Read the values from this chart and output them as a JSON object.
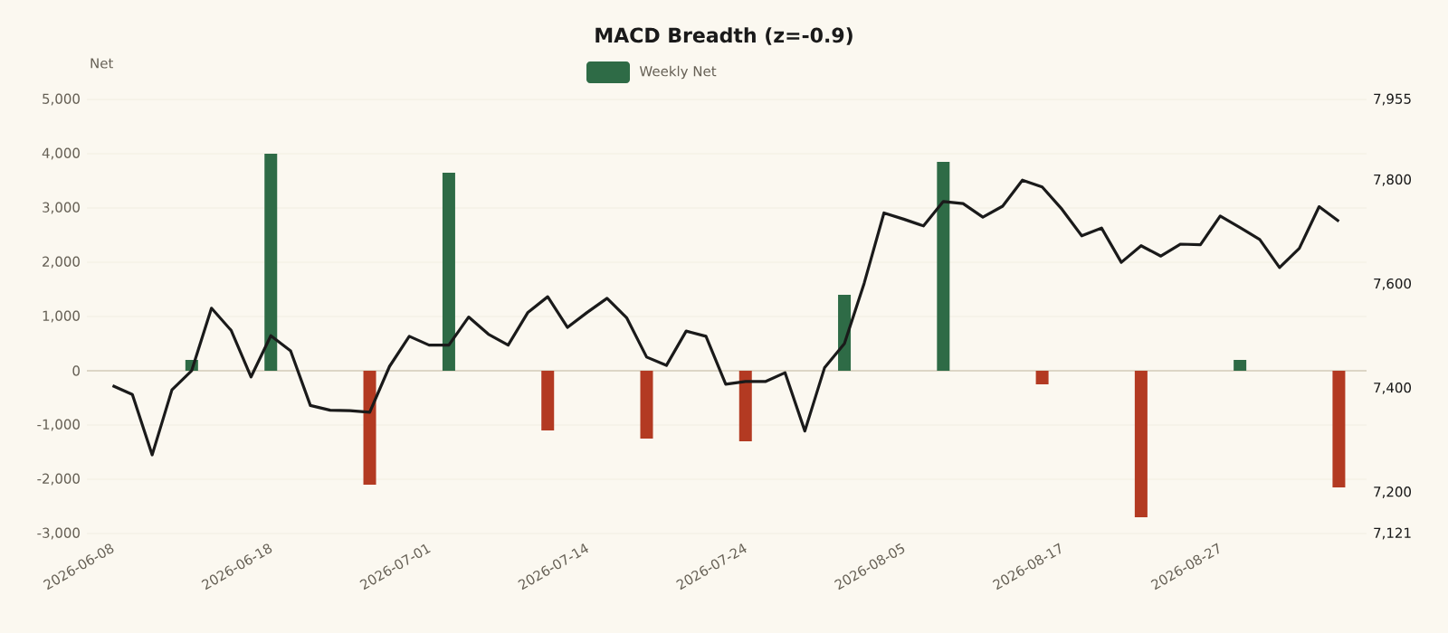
{
  "chart_data": {
    "type": "bar",
    "title": "MACD Breadth (z=-0.9)",
    "ylabel": "Net",
    "categories": [
      "2026-06-08",
      null,
      null,
      null,
      null,
      null,
      null,
      null,
      "2026-06-18",
      null,
      null,
      null,
      null,
      null,
      null,
      null,
      "2026-07-01",
      null,
      null,
      null,
      null,
      null,
      null,
      null,
      "2026-07-14",
      null,
      null,
      null,
      null,
      null,
      null,
      null,
      "2026-07-24",
      null,
      null,
      null,
      null,
      null,
      null,
      null,
      "2026-08-05",
      null,
      null,
      null,
      null,
      null,
      null,
      null,
      "2026-08-17",
      null,
      null,
      null,
      null,
      null,
      null,
      null,
      "2026-08-27",
      null,
      null,
      null,
      null,
      null,
      null
    ],
    "series": [
      {
        "name": "Weekly Net",
        "color": "#2e6b46",
        "values": [
          null,
          null,
          null,
          null,
          200,
          null,
          null,
          null,
          4000,
          null,
          null,
          null,
          null,
          -2100,
          null,
          null,
          null,
          3650,
          null,
          null,
          null,
          null,
          -1100,
          null,
          null,
          null,
          null,
          -1250,
          null,
          null,
          null,
          null,
          -1300,
          null,
          null,
          null,
          null,
          1400,
          null,
          null,
          null,
          null,
          3850,
          null,
          null,
          null,
          null,
          -250,
          null,
          null,
          null,
          null,
          -2700,
          null,
          null,
          null,
          null,
          200,
          null,
          null,
          null,
          null,
          -2150
        ],
        "colors": [
          null,
          null,
          null,
          null,
          "#2e6b46",
          null,
          null,
          null,
          "#2e6b46",
          null,
          null,
          null,
          null,
          "#b33a22",
          null,
          null,
          null,
          "#2e6b46",
          null,
          null,
          null,
          null,
          "#b33a22",
          null,
          null,
          null,
          null,
          "#b33a22",
          null,
          null,
          null,
          null,
          "#b33a22",
          null,
          null,
          null,
          null,
          "#2e6b46",
          null,
          null,
          null,
          null,
          "#2e6b46",
          null,
          null,
          null,
          null,
          "#b33a22",
          null,
          null,
          null,
          null,
          "#b33a22",
          null,
          null,
          null,
          null,
          "#2e6b46",
          null,
          null,
          null,
          null,
          "#b33a22"
        ]
      },
      {
        "type": "line",
        "axis": "y2",
        "color": "#1a1a1a",
        "values": [
          7405,
          7388,
          7272,
          7397,
          7434,
          7554,
          7511,
          7422,
          7501,
          7472,
          7367,
          7358,
          7357,
          7354,
          7442,
          7500,
          7483,
          7483,
          7537,
          7504,
          7483,
          7546,
          7576,
          7517,
          7546,
          7573,
          7535,
          7460,
          7444,
          7510,
          7500,
          7408,
          7413,
          7413,
          7430,
          7318,
          7440,
          7486,
          7602,
          7737,
          7725,
          7712,
          7759,
          7755,
          7729,
          7750,
          7800,
          7787,
          7744,
          7693,
          7708,
          7642,
          7674,
          7654,
          7677,
          7676,
          7731,
          7709,
          7686,
          7632,
          7669,
          7749,
          7721
        ]
      }
    ],
    "ylim": [
      -3000,
      5000
    ],
    "yticks": [
      {
        "value": -3000,
        "label": "-3,000"
      },
      {
        "value": -2000,
        "label": "-2,000"
      },
      {
        "value": -1000,
        "label": "-1,000"
      },
      0,
      {
        "value": 1000,
        "label": "1,000"
      },
      {
        "value": 2000,
        "label": "2,000"
      },
      {
        "value": 3000,
        "label": "3,000"
      },
      {
        "value": 4000,
        "label": "4,000"
      },
      {
        "value": 5000,
        "label": "5,000"
      }
    ],
    "y2lim": [
      7121,
      7955
    ],
    "y2ticks": [
      {
        "value": 7121,
        "label": "7,121"
      },
      {
        "value": 7200,
        "label": "7,200"
      },
      {
        "value": 7400,
        "label": "7,400"
      },
      {
        "value": 7600,
        "label": "7,600"
      },
      {
        "value": 7800,
        "label": "7,800"
      },
      {
        "value": 7955,
        "label": "7,955"
      }
    ],
    "grid": "y",
    "legend": "top",
    "ref_lines": [
      {
        "axis": "y",
        "value": 0,
        "color": "#dcd6c6"
      }
    ]
  }
}
